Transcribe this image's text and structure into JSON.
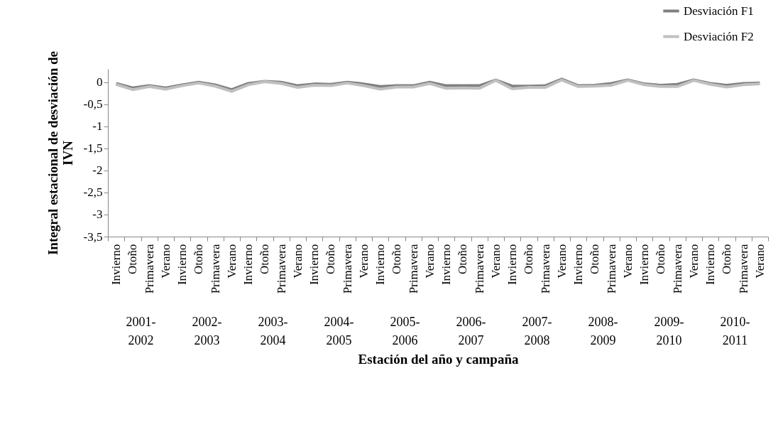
{
  "chart_data": {
    "type": "line",
    "xlabel": "Estación del año y campaña",
    "ylabel": "Integral estacional de desviación de IVN",
    "categories": [
      "Invierno",
      "Otoño",
      "Primavera",
      "Verano",
      "Invierno",
      "Otoño",
      "Primavera",
      "Verano",
      "Invierno",
      "Otoño",
      "Primavera",
      "Verano",
      "Invierno",
      "Otoño",
      "Primavera",
      "Verano",
      "Invierno",
      "Otoño",
      "Primavera",
      "Verano",
      "Invierno",
      "Otoño",
      "Primavera",
      "Verano",
      "Invierno",
      "Otoño",
      "Primavera",
      "Verano",
      "Invierno",
      "Otoño",
      "Primavera",
      "Verano",
      "Invierno",
      "Otoño",
      "Primavera",
      "Verano",
      "Invierno",
      "Otoño",
      "Primavera",
      "Verano"
    ],
    "annotations": [
      "2001-2002",
      "2002-2003",
      "2003-2004",
      "2004-2005",
      "2005-2006",
      "2006-2007",
      "2007-2008",
      "2008-2009",
      "2009-2010",
      "2010-2011"
    ],
    "series": [
      {
        "name": "Desviación F1",
        "color": "#808080",
        "values": [
          -0.03,
          -0.13,
          -0.08,
          -0.13,
          -0.06,
          0.0,
          -0.06,
          -0.17,
          -0.03,
          0.02,
          0.0,
          -0.08,
          -0.04,
          -0.05,
          0.0,
          -0.04,
          -0.1,
          -0.08,
          -0.08,
          0.0,
          -0.08,
          -0.08,
          -0.08,
          0.05,
          -0.09,
          -0.09,
          -0.08,
          0.07,
          -0.08,
          -0.07,
          -0.03,
          0.05,
          -0.04,
          -0.07,
          -0.05,
          0.05,
          -0.03,
          -0.07,
          -0.03,
          -0.02
        ]
      },
      {
        "name": "Desviación F2",
        "color": "#c0c0c0",
        "values": [
          -0.05,
          -0.17,
          -0.1,
          -0.16,
          -0.08,
          -0.02,
          -0.09,
          -0.21,
          -0.06,
          0.01,
          -0.03,
          -0.12,
          -0.07,
          -0.08,
          -0.02,
          -0.08,
          -0.16,
          -0.11,
          -0.11,
          -0.03,
          -0.14,
          -0.13,
          -0.14,
          0.04,
          -0.15,
          -0.12,
          -0.12,
          0.05,
          -0.1,
          -0.09,
          -0.07,
          0.04,
          -0.06,
          -0.1,
          -0.1,
          0.04,
          -0.05,
          -0.11,
          -0.06,
          -0.04
        ]
      }
    ],
    "ylim": [
      -3.5,
      0.3
    ],
    "yticks": [
      {
        "value": -3.5,
        "label": "-3,5"
      },
      -3,
      {
        "value": -2.5,
        "label": "-2,5"
      },
      -2,
      {
        "value": -1.5,
        "label": "-1,5"
      },
      -1,
      {
        "value": -0.5,
        "label": "-0,5"
      },
      0
    ],
    "legend": "top right",
    "grid": false,
    "marker": "none",
    "line_style": "solid"
  }
}
